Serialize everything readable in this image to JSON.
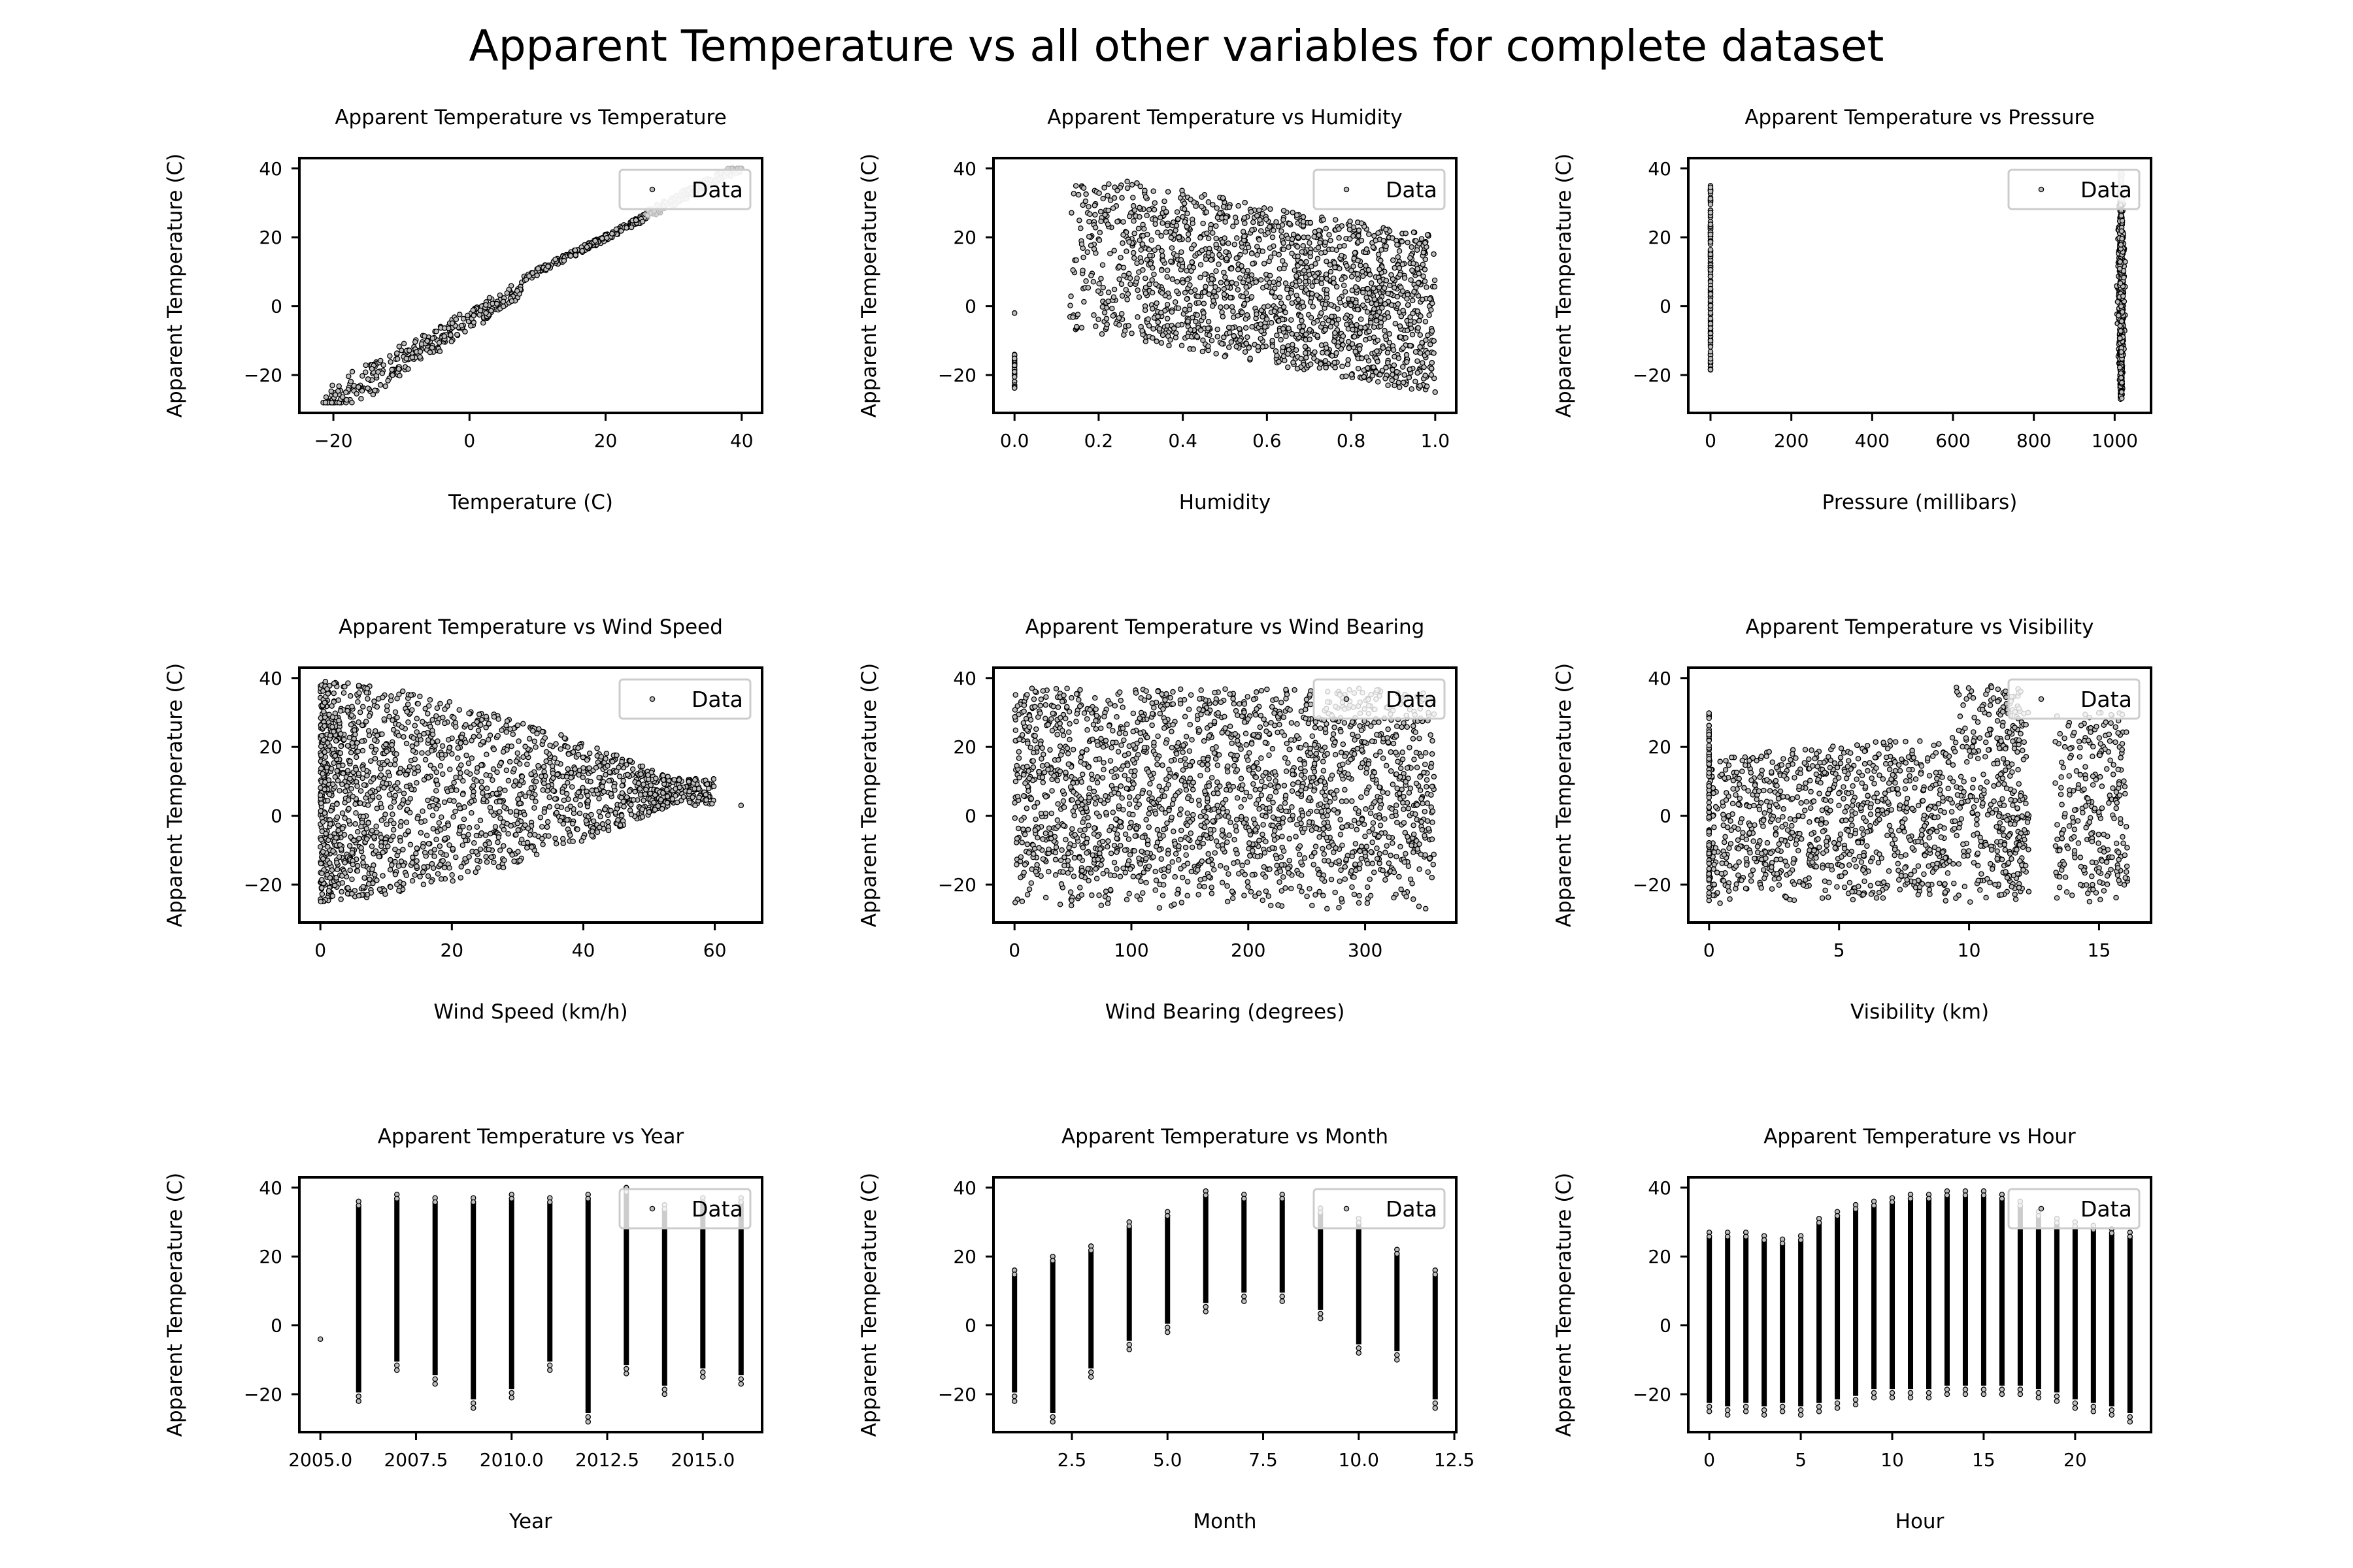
{
  "figure": {
    "title": "Apparent Temperature vs all other variables for complete dataset"
  },
  "colors": {
    "marker_edge": "#000000",
    "marker_fill": "#bfbfbf",
    "axes": "#000000",
    "legend_frame": "#cccccc",
    "background": "#ffffff"
  },
  "chart_data": [
    {
      "type": "scatter",
      "title": "Apparent Temperature vs Temperature",
      "xlabel": "Temperature (C)",
      "ylabel": "Apparent Temperature (C)",
      "xlim": [
        -25,
        43
      ],
      "ylim": [
        -31,
        43
      ],
      "xticks": [
        -20,
        0,
        20,
        40
      ],
      "xtick_labels": [
        "−20",
        "0",
        "20",
        "40"
      ],
      "yticks": [
        -20,
        0,
        20,
        40
      ],
      "ytick_labels": [
        "−20",
        "0",
        "20",
        "40"
      ],
      "series": [
        {
          "name": "Data",
          "marker": "o"
        }
      ],
      "legend": "upper right",
      "shape": "diagonal-band",
      "samples": [
        [
          -21.8,
          -21.5
        ],
        [
          -20,
          -26
        ],
        [
          -15,
          -18
        ],
        [
          -12,
          -22
        ],
        [
          -10,
          -13
        ],
        [
          -5,
          -10
        ],
        [
          0,
          -2
        ],
        [
          0,
          -6
        ],
        [
          5,
          3
        ],
        [
          10,
          8
        ],
        [
          15,
          15
        ],
        [
          20,
          20
        ],
        [
          25,
          24
        ],
        [
          30,
          30
        ],
        [
          35,
          35
        ],
        [
          39.9,
          39
        ]
      ]
    },
    {
      "type": "scatter",
      "title": "Apparent Temperature vs Humidity",
      "xlabel": "Humidity",
      "ylabel": "Apparent Temperature (C)",
      "xlim": [
        -0.05,
        1.05
      ],
      "ylim": [
        -31,
        43
      ],
      "xticks": [
        0.0,
        0.2,
        0.4,
        0.6,
        0.8,
        1.0
      ],
      "xtick_labels": [
        "0.0",
        "0.2",
        "0.4",
        "0.6",
        "0.8",
        "1.0"
      ],
      "yticks": [
        -20,
        0,
        20,
        40
      ],
      "ytick_labels": [
        "−20",
        "0",
        "20",
        "40"
      ],
      "series": [
        {
          "name": "Data",
          "marker": "o"
        }
      ],
      "legend": "upper right",
      "shape": "decreasing-cloud",
      "samples": [
        [
          0,
          -2
        ],
        [
          0,
          -15
        ],
        [
          0,
          -22
        ],
        [
          0.15,
          -3
        ],
        [
          0.15,
          20
        ],
        [
          0.2,
          37
        ],
        [
          0.3,
          36
        ],
        [
          0.4,
          34
        ],
        [
          0.5,
          30
        ],
        [
          0.6,
          28
        ],
        [
          0.7,
          25
        ],
        [
          0.8,
          20
        ],
        [
          0.9,
          18
        ],
        [
          1.0,
          20
        ],
        [
          0.5,
          -20
        ],
        [
          0.7,
          -25
        ],
        [
          0.8,
          -27
        ],
        [
          1.0,
          -15
        ]
      ]
    },
    {
      "type": "scatter",
      "title": "Apparent Temperature vs Pressure",
      "xlabel": "Pressure (millibars)",
      "ylabel": "Apparent Temperature (C)",
      "xlim": [
        -55,
        1090
      ],
      "ylim": [
        -31,
        43
      ],
      "xticks": [
        0,
        200,
        400,
        600,
        800,
        1000
      ],
      "xtick_labels": [
        "0",
        "200",
        "400",
        "600",
        "800",
        "1000"
      ],
      "yticks": [
        -20,
        0,
        20,
        40
      ],
      "ytick_labels": [
        "−20",
        "0",
        "20",
        "40"
      ],
      "series": [
        {
          "name": "Data",
          "marker": "o"
        }
      ],
      "legend": "upper right",
      "shape": "two-columns",
      "samples": [
        [
          0,
          36
        ],
        [
          0,
          0
        ],
        [
          0,
          -19
        ],
        [
          1000,
          39
        ],
        [
          1010,
          20
        ],
        [
          1015,
          0
        ],
        [
          1020,
          -15
        ],
        [
          1030,
          -27
        ]
      ]
    },
    {
      "type": "scatter",
      "title": "Apparent Temperature vs Wind Speed",
      "xlabel": "Wind Speed (km/h)",
      "ylabel": "Apparent Temperature (C)",
      "xlim": [
        -3.2,
        67.2
      ],
      "ylim": [
        -31,
        43
      ],
      "xticks": [
        0,
        20,
        40,
        60
      ],
      "xtick_labels": [
        "0",
        "20",
        "40",
        "60"
      ],
      "yticks": [
        -20,
        0,
        20,
        40
      ],
      "ytick_labels": [
        "−20",
        "0",
        "20",
        "40"
      ],
      "series": [
        {
          "name": "Data",
          "marker": "o"
        }
      ],
      "legend": "upper right",
      "shape": "tapering-cloud",
      "samples": [
        [
          0,
          36
        ],
        [
          10,
          38
        ],
        [
          20,
          36
        ],
        [
          30,
          30
        ],
        [
          40,
          20
        ],
        [
          45,
          15
        ],
        [
          50,
          8
        ],
        [
          55,
          10
        ],
        [
          56,
          3
        ],
        [
          64,
          3
        ],
        [
          40,
          -15
        ],
        [
          30,
          -20
        ],
        [
          15,
          -27
        ],
        [
          0,
          -18
        ]
      ]
    },
    {
      "type": "scatter",
      "title": "Apparent Temperature vs Wind Bearing",
      "xlabel": "Wind Bearing (degrees)",
      "ylabel": "Apparent Temperature (C)",
      "xlim": [
        -18,
        378
      ],
      "ylim": [
        -31,
        43
      ],
      "xticks": [
        0,
        100,
        200,
        300
      ],
      "xtick_labels": [
        "0",
        "100",
        "200",
        "300"
      ],
      "yticks": [
        -20,
        0,
        20,
        40
      ],
      "ytick_labels": [
        "−20",
        "0",
        "20",
        "40"
      ],
      "series": [
        {
          "name": "Data",
          "marker": "o"
        }
      ],
      "legend": "upper right",
      "shape": "uniform-block",
      "samples": [
        [
          0,
          36
        ],
        [
          100,
          37
        ],
        [
          200,
          38
        ],
        [
          300,
          37
        ],
        [
          359,
          36
        ],
        [
          0,
          -20
        ],
        [
          20,
          -27
        ],
        [
          150,
          -25
        ],
        [
          250,
          -24
        ],
        [
          340,
          -26
        ]
      ]
    },
    {
      "type": "scatter",
      "title": "Apparent Temperature vs Visibility",
      "xlabel": "Visibility (km)",
      "ylabel": "Apparent Temperature (C)",
      "xlim": [
        -0.8,
        17.0
      ],
      "ylim": [
        -31,
        43
      ],
      "xticks": [
        0,
        5,
        10,
        15
      ],
      "xtick_labels": [
        "0",
        "5",
        "10",
        "15"
      ],
      "yticks": [
        -20,
        0,
        20,
        40
      ],
      "ytick_labels": [
        "−20",
        "0",
        "20",
        "40"
      ],
      "series": [
        {
          "name": "Data",
          "marker": "o"
        }
      ],
      "legend": "upper right",
      "shape": "clustered",
      "samples": [
        [
          0,
          30
        ],
        [
          0,
          -28
        ],
        [
          3,
          20
        ],
        [
          6,
          25
        ],
        [
          9,
          28
        ],
        [
          10,
          39
        ],
        [
          11,
          38
        ],
        [
          12,
          30
        ],
        [
          12.5,
          15
        ],
        [
          13,
          30
        ],
        [
          15,
          35
        ],
        [
          16,
          30
        ],
        [
          16,
          -20
        ],
        [
          5,
          -25
        ],
        [
          10,
          -20
        ]
      ]
    },
    {
      "type": "scatter",
      "title": "Apparent Temperature vs Year",
      "xlabel": "Year",
      "ylabel": "Apparent Temperature (C)",
      "xlim": [
        2004.45,
        2016.55
      ],
      "ylim": [
        -31,
        43
      ],
      "xticks": [
        2005.0,
        2007.5,
        2010.0,
        2012.5,
        2015.0
      ],
      "xtick_labels": [
        "2005.0",
        "2007.5",
        "2010.0",
        "2012.5",
        "2015.0"
      ],
      "yticks": [
        -20,
        0,
        20,
        40
      ],
      "ytick_labels": [
        "−20",
        "0",
        "20",
        "40"
      ],
      "series": [
        {
          "name": "Data",
          "marker": "o"
        }
      ],
      "legend": "upper right",
      "shape": "vertical-strips",
      "x": [
        2005,
        2006,
        2007,
        2008,
        2009,
        2010,
        2011,
        2012,
        2013,
        2014,
        2015,
        2016
      ],
      "y_min": [
        -4,
        -22,
        -13,
        -17,
        -24,
        -21,
        -13,
        -28,
        -14,
        -20,
        -15,
        -17
      ],
      "y_max": [
        -4,
        36,
        38,
        37,
        37,
        38,
        37,
        38,
        40,
        35,
        37,
        37
      ]
    },
    {
      "type": "scatter",
      "title": "Apparent Temperature vs Month",
      "xlabel": "Month",
      "ylabel": "Apparent Temperature (C)",
      "xlim": [
        0.45,
        12.55
      ],
      "ylim": [
        -31,
        43
      ],
      "xticks": [
        2.5,
        5.0,
        7.5,
        10.0,
        12.5
      ],
      "xtick_labels": [
        "2.5",
        "5.0",
        "7.5",
        "10.0",
        "12.5"
      ],
      "yticks": [
        -20,
        0,
        20,
        40
      ],
      "ytick_labels": [
        "−20",
        "0",
        "20",
        "40"
      ],
      "series": [
        {
          "name": "Data",
          "marker": "o"
        }
      ],
      "legend": "upper right",
      "shape": "vertical-strips",
      "x": [
        1,
        2,
        3,
        4,
        5,
        6,
        7,
        8,
        9,
        10,
        11,
        12
      ],
      "y_min": [
        -22,
        -28,
        -15,
        -7,
        -2,
        4,
        7,
        7,
        2,
        -8,
        -10,
        -24
      ],
      "y_max": [
        16,
        20,
        23,
        30,
        33,
        39,
        38,
        38,
        34,
        31,
        22,
        16
      ]
    },
    {
      "type": "scatter",
      "title": "Apparent Temperature vs Hour",
      "xlabel": "Hour",
      "ylabel": "Apparent Temperature (C)",
      "xlim": [
        -1.15,
        24.15
      ],
      "ylim": [
        -31,
        43
      ],
      "xticks": [
        0,
        5,
        10,
        15,
        20
      ],
      "xtick_labels": [
        "0",
        "5",
        "10",
        "15",
        "20"
      ],
      "yticks": [
        -20,
        0,
        20,
        40
      ],
      "ytick_labels": [
        "−20",
        "0",
        "20",
        "40"
      ],
      "series": [
        {
          "name": "Data",
          "marker": "o"
        }
      ],
      "legend": "upper right",
      "shape": "vertical-strips",
      "x": [
        0,
        1,
        2,
        3,
        4,
        5,
        6,
        7,
        8,
        9,
        10,
        11,
        12,
        13,
        14,
        15,
        16,
        17,
        18,
        19,
        20,
        21,
        22,
        23
      ],
      "y_min": [
        -25,
        -26,
        -25,
        -26,
        -25,
        -26,
        -25,
        -24,
        -23,
        -21,
        -21,
        -21,
        -21,
        -20,
        -20,
        -20,
        -20,
        -20,
        -21,
        -22,
        -24,
        -25,
        -26,
        -28
      ],
      "y_max": [
        27,
        27,
        27,
        26,
        25,
        26,
        31,
        33,
        35,
        36,
        37,
        38,
        38,
        39,
        39,
        39,
        38,
        36,
        33,
        31,
        30,
        29,
        28,
        27
      ]
    }
  ]
}
